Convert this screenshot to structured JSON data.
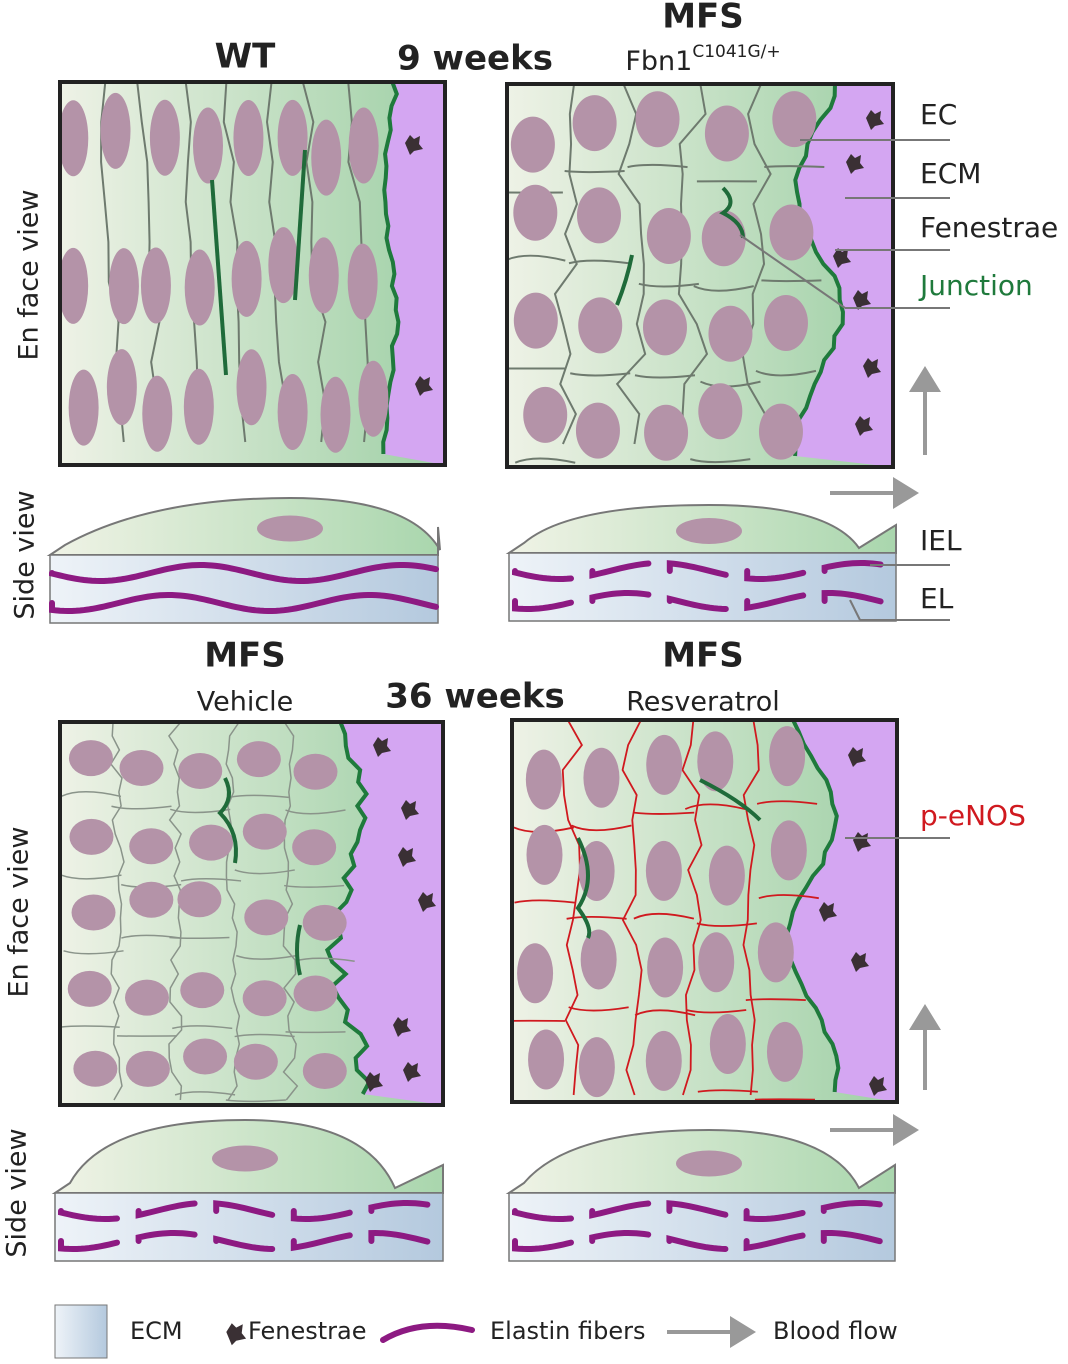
{
  "timepoints": [
    "9 weeks",
    "36 weeks"
  ],
  "panels": [
    {
      "title": "WT"
    },
    {
      "title": "MFS",
      "subtitle": "Fbn1",
      "superscript": "C1041G/+"
    },
    {
      "title": "MFS",
      "subtitle": "Vehicle"
    },
    {
      "title": "MFS",
      "subtitle": "Resveratrol"
    }
  ],
  "view_labels": {
    "en_face": "En face view",
    "side": "Side view"
  },
  "annotations": {
    "ec": "EC",
    "ecm": "ECM",
    "fenestrae": "Fenestrae",
    "junction": "Junction",
    "iel": "IEL",
    "el": "EL",
    "p_enos": "p-eNOS"
  },
  "legend": [
    "ECM",
    "Fenestrae",
    "Elastin fibers",
    "Blood flow"
  ]
}
